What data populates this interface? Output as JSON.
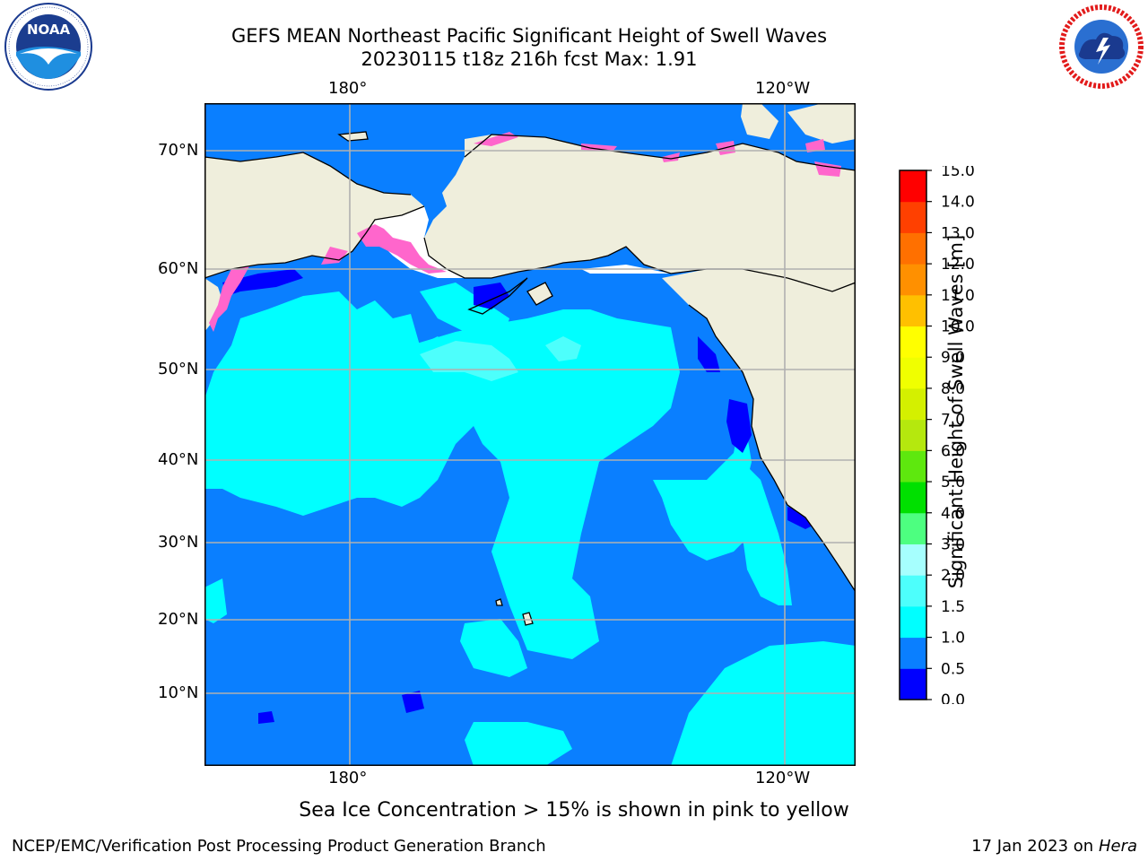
{
  "header": {
    "title_line1": "GEFS MEAN Northeast Pacific Significant Height of Swell Waves",
    "title_line2": "20230115 t18z 216h fcst   Max: 1.91"
  },
  "logos": {
    "left": {
      "icon": "noaa-logo",
      "text": "NOAA",
      "ring_text": "NATIONAL OCEANIC AND ATMOSPHERIC ADMINISTRATION · U.S. DEPARTMENT OF COMMERCE"
    },
    "right": {
      "icon": "nws-logo",
      "ring_text": "NATIONAL WEATHER SERVICE"
    }
  },
  "map": {
    "lon_labels_top": [
      "180°",
      "120°W"
    ],
    "lon_labels_bottom": [
      "180°",
      "120°W"
    ],
    "lat_labels": [
      "70°N",
      "60°N",
      "50°N",
      "40°N",
      "30°N",
      "20°N",
      "10°N"
    ],
    "colors": {
      "land": "#efeedc",
      "ocean_0_5_1_0": "#0a7fff",
      "ocean_1_0_1_5": "#00ffff",
      "ocean_1_5_2_0": "#4dfffc",
      "ocean_0_0_0_5": "#0000ff",
      "sea_ice": "#ff66cc",
      "gridline": "#b0b0b0"
    }
  },
  "colorbar": {
    "label": "Significant Height of Swell Waves [m]",
    "ticks": [
      "0.0",
      "0.5",
      "1.0",
      "1.5",
      "2.0",
      "3.0",
      "4.0",
      "5.0",
      "6.0",
      "7.0",
      "8.0",
      "9.0",
      "10.0",
      "11.0",
      "12.0",
      "13.0",
      "14.0",
      "15.0"
    ],
    "colors": [
      "#0000ff",
      "#0a7fff",
      "#00ffff",
      "#4dfffc",
      "#a6fffe",
      "#4dff80",
      "#00e000",
      "#5ee80e",
      "#b5e80e",
      "#d4f000",
      "#f0ff00",
      "#ffff00",
      "#ffc000",
      "#ff9000",
      "#ff7000",
      "#ff4000",
      "#ff0000"
    ]
  },
  "note": "Sea Ice Concentration > 15% is shown in pink to yellow",
  "footer": {
    "left": "NCEP/EMC/Verification Post Processing Product Generation Branch",
    "right_prefix": "17 Jan 2023 on ",
    "right_system": "Hera"
  }
}
